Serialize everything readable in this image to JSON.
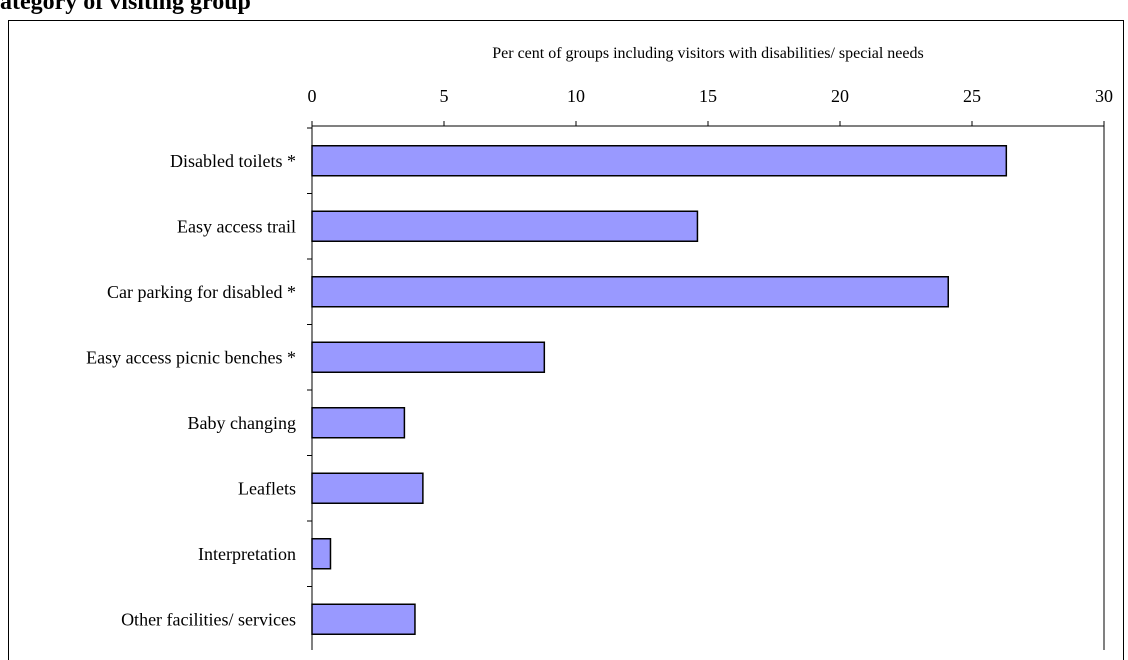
{
  "page": {
    "title": "ategory of visiting group"
  },
  "chart_data": {
    "type": "bar",
    "orientation": "horizontal",
    "title": "",
    "xlabel": "Per cent of groups including visitors with disabilities/ special needs",
    "ylabel": "",
    "xlim": [
      0,
      30
    ],
    "x_ticks": [
      0,
      5,
      10,
      15,
      20,
      25,
      30
    ],
    "x_axis_position": "top",
    "grid": false,
    "categories": [
      "Disabled toilets *",
      "Easy access trail",
      "Car parking for disabled *",
      "Easy access picnic benches *",
      "Baby changing",
      "Leaflets",
      "Interpretation",
      "Other facilities/ services"
    ],
    "values": [
      26.3,
      14.6,
      24.1,
      8.8,
      3.5,
      4.2,
      0.7,
      3.9
    ],
    "bar_color": "#9999ff",
    "bar_edge_color": "#000000"
  }
}
